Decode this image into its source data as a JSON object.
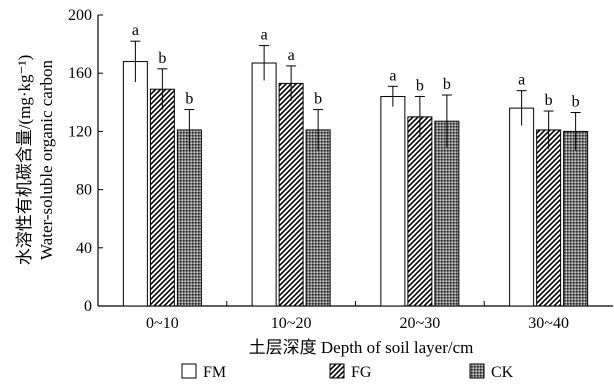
{
  "chart_data": {
    "type": "bar",
    "title": "",
    "xlabel": "土层深度 Depth of soil layer/cm",
    "ylabel_cn": "水溶性有机碳含量/(mg·kg⁻¹)",
    "ylabel_en": "Water-soluble organic carbon",
    "ylim": [
      0,
      200
    ],
    "yticks": [
      "0",
      "40",
      "80",
      "120",
      "160",
      "200"
    ],
    "categories": [
      "0~10",
      "10~20",
      "20~30",
      "30~40"
    ],
    "series": [
      {
        "name": "FM",
        "pattern": "open",
        "values": [
          168,
          167,
          144,
          136
        ],
        "errors": [
          14,
          12,
          7,
          12
        ],
        "letters": [
          "a",
          "a",
          "a",
          "a"
        ]
      },
      {
        "name": "FG",
        "pattern": "hatch",
        "values": [
          149,
          153,
          130,
          121
        ],
        "errors": [
          14,
          12,
          14,
          13
        ],
        "letters": [
          "b",
          "a",
          "b",
          "b"
        ]
      },
      {
        "name": "CK",
        "pattern": "dots",
        "values": [
          121,
          121,
          127,
          120
        ],
        "errors": [
          14,
          14,
          18,
          13
        ],
        "letters": [
          "b",
          "b",
          "b",
          "b"
        ]
      }
    ],
    "grid": false,
    "legend_position": "bottom"
  }
}
